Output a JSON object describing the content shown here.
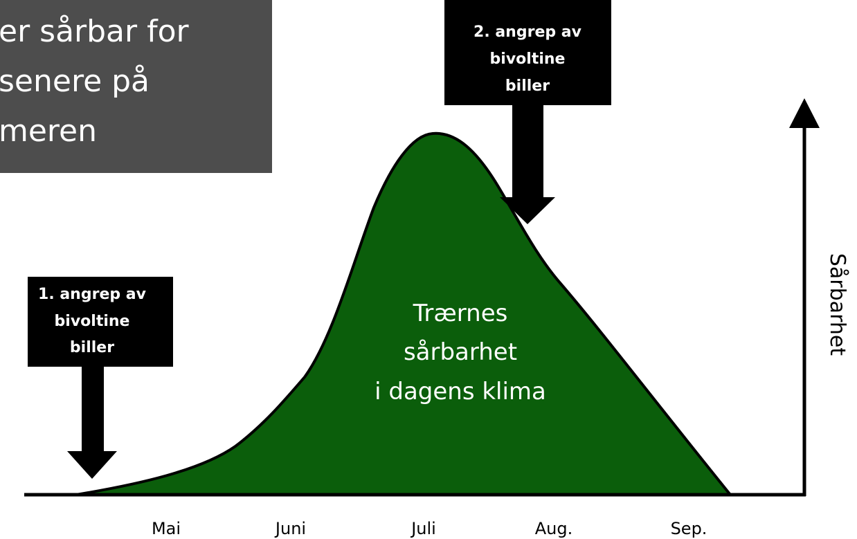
{
  "callout": {
    "lines": [
      "er sårbar for",
      "senere på",
      "meren"
    ]
  },
  "attack_1": {
    "lines": [
      "1. angrep av",
      "bivoltine",
      "biller"
    ]
  },
  "attack_2": {
    "lines": [
      "2. angrep av",
      "bivoltine",
      "biller"
    ]
  },
  "curve_label": {
    "lines": [
      "Trærnes",
      "sårbarhet",
      "i dagens klima"
    ]
  },
  "months": [
    "Mai",
    "Juni",
    "Juli",
    "Aug.",
    "Sep."
  ],
  "axis_label": "Sårbarhet"
}
